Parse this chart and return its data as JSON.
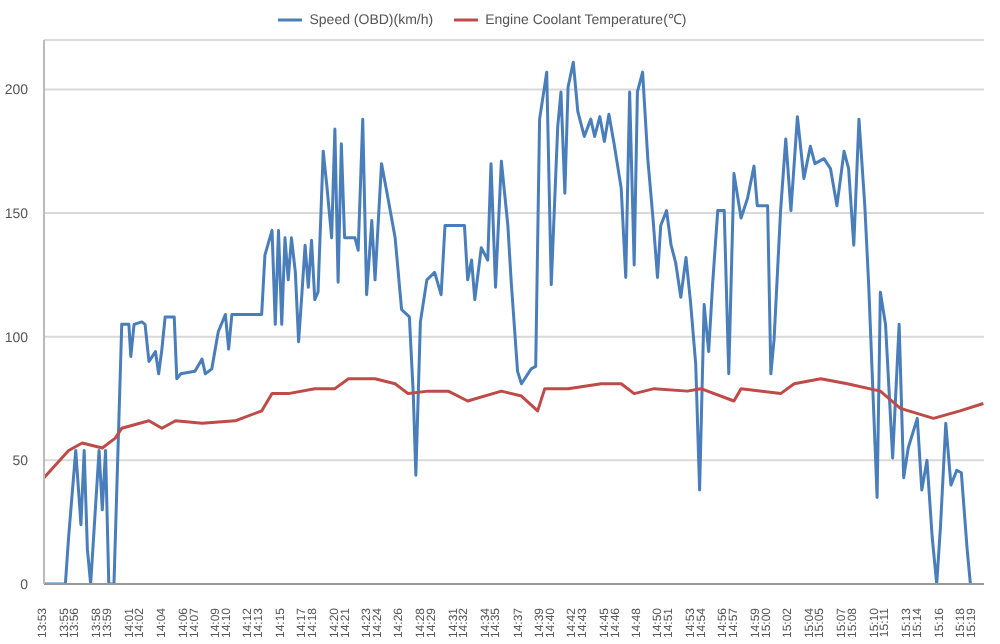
{
  "chart_data": {
    "type": "line",
    "xlim": [
      13.883,
      15.334
    ],
    "ylim": [
      0,
      220
    ],
    "yticks": [
      0,
      50,
      100,
      150,
      200
    ],
    "xticks": [
      {
        "value": 13.883,
        "label": "13:53"
      },
      {
        "value": 13.917,
        "label": "13:55"
      },
      {
        "value": 13.933,
        "label": "13:56"
      },
      {
        "value": 13.967,
        "label": "13:58"
      },
      {
        "value": 13.983,
        "label": "13:59"
      },
      {
        "value": 14.017,
        "label": "14:01"
      },
      {
        "value": 14.033,
        "label": "14:02"
      },
      {
        "value": 14.067,
        "label": "14:04"
      },
      {
        "value": 14.1,
        "label": "14:06"
      },
      {
        "value": 14.117,
        "label": "14:07"
      },
      {
        "value": 14.15,
        "label": "14:09"
      },
      {
        "value": 14.167,
        "label": "14:10"
      },
      {
        "value": 14.2,
        "label": "14:12"
      },
      {
        "value": 14.217,
        "label": "14:13"
      },
      {
        "value": 14.25,
        "label": "14:15"
      },
      {
        "value": 14.283,
        "label": "14:17"
      },
      {
        "value": 14.3,
        "label": "14:18"
      },
      {
        "value": 14.333,
        "label": "14:20"
      },
      {
        "value": 14.35,
        "label": "14:21"
      },
      {
        "value": 14.383,
        "label": "14:23"
      },
      {
        "value": 14.4,
        "label": "14:24"
      },
      {
        "value": 14.433,
        "label": "14:26"
      },
      {
        "value": 14.467,
        "label": "14:28"
      },
      {
        "value": 14.483,
        "label": "14:29"
      },
      {
        "value": 14.517,
        "label": "14:31"
      },
      {
        "value": 14.533,
        "label": "14:32"
      },
      {
        "value": 14.567,
        "label": "14:34"
      },
      {
        "value": 14.583,
        "label": "14:35"
      },
      {
        "value": 14.617,
        "label": "14:37"
      },
      {
        "value": 14.65,
        "label": "14:39"
      },
      {
        "value": 14.667,
        "label": "14:40"
      },
      {
        "value": 14.7,
        "label": "14:42"
      },
      {
        "value": 14.717,
        "label": "14:43"
      },
      {
        "value": 14.75,
        "label": "14:45"
      },
      {
        "value": 14.767,
        "label": "14:46"
      },
      {
        "value": 14.8,
        "label": "14:48"
      },
      {
        "value": 14.833,
        "label": "14:50"
      },
      {
        "value": 14.85,
        "label": "14:51"
      },
      {
        "value": 14.883,
        "label": "14:53"
      },
      {
        "value": 14.9,
        "label": "14:54"
      },
      {
        "value": 14.933,
        "label": "14:56"
      },
      {
        "value": 14.95,
        "label": "14:57"
      },
      {
        "value": 14.983,
        "label": "14:59"
      },
      {
        "value": 15.0,
        "label": "15:00"
      },
      {
        "value": 15.033,
        "label": "15:02"
      },
      {
        "value": 15.067,
        "label": "15:04"
      },
      {
        "value": 15.083,
        "label": "15:05"
      },
      {
        "value": 15.117,
        "label": "15:07"
      },
      {
        "value": 15.133,
        "label": "15:08"
      },
      {
        "value": 15.167,
        "label": "15:10"
      },
      {
        "value": 15.183,
        "label": "15:11"
      },
      {
        "value": 15.217,
        "label": "15:13"
      },
      {
        "value": 15.233,
        "label": "15:14"
      },
      {
        "value": 15.267,
        "label": "15:16"
      },
      {
        "value": 15.3,
        "label": "15:18"
      },
      {
        "value": 15.317,
        "label": "15:19"
      }
    ],
    "grid": "y",
    "legend": "top",
    "marker": "none",
    "line_style": "solid",
    "series": [
      {
        "name": "Speed (OBD)(km/h)",
        "color": "#4a7ebb",
        "x": [
          13.883,
          13.916,
          13.921,
          13.932,
          13.94,
          13.945,
          13.95,
          13.955,
          13.968,
          13.973,
          13.978,
          13.983,
          13.991,
          14.003,
          14.014,
          14.017,
          14.022,
          14.034,
          14.039,
          14.045,
          14.055,
          14.06,
          14.065,
          14.07,
          14.084,
          14.088,
          14.094,
          14.116,
          14.127,
          14.132,
          14.142,
          14.152,
          14.163,
          14.168,
          14.173,
          14.219,
          14.224,
          14.235,
          14.24,
          14.245,
          14.25,
          14.255,
          14.26,
          14.265,
          14.271,
          14.276,
          14.281,
          14.286,
          14.291,
          14.296,
          14.301,
          14.306,
          14.314,
          14.32,
          14.327,
          14.332,
          14.337,
          14.342,
          14.347,
          14.363,
          14.368,
          14.375,
          14.381,
          14.389,
          14.394,
          14.404,
          14.414,
          14.425,
          14.435,
          14.447,
          14.453,
          14.457,
          14.464,
          14.474,
          14.486,
          14.496,
          14.502,
          14.532,
          14.537,
          14.543,
          14.548,
          14.558,
          14.568,
          14.573,
          14.58,
          14.589,
          14.599,
          14.604,
          14.614,
          14.62,
          14.635,
          14.642,
          14.648,
          14.659,
          14.666,
          14.676,
          14.681,
          14.687,
          14.692,
          14.7,
          14.707,
          14.717,
          14.727,
          14.733,
          14.741,
          14.748,
          14.755,
          14.763,
          14.774,
          14.781,
          14.787,
          14.794,
          14.799,
          14.807,
          14.815,
          14.823,
          14.83,
          14.835,
          14.844,
          14.851,
          14.858,
          14.866,
          14.874,
          14.881,
          14.889,
          14.895,
          14.902,
          14.909,
          14.915,
          14.923,
          14.933,
          14.94,
          14.948,
          14.959,
          14.969,
          14.979,
          14.984,
          15.0,
          15.005,
          15.01,
          15.02,
          15.028,
          15.036,
          15.046,
          15.056,
          15.066,
          15.073,
          15.087,
          15.097,
          15.107,
          15.118,
          15.125,
          15.133,
          15.141,
          15.15,
          15.156,
          15.169,
          15.174,
          15.182,
          15.193,
          15.203,
          15.21,
          15.217,
          15.231,
          15.238,
          15.246,
          15.254,
          15.261,
          15.267,
          15.275,
          15.283,
          15.292,
          15.299,
          15.308,
          15.313
        ],
        "values": [
          0,
          0,
          19,
          54,
          24,
          54,
          14,
          0,
          54,
          30,
          54,
          0,
          0,
          105,
          105,
          92,
          105,
          106,
          105,
          90,
          94,
          85,
          95,
          108,
          108,
          83,
          85,
          86,
          91,
          85,
          87,
          102,
          109,
          95,
          109,
          109,
          133,
          143,
          105,
          143,
          105,
          140,
          123,
          140,
          126,
          98,
          117,
          137,
          120,
          139,
          115,
          118,
          175,
          160,
          140,
          184,
          122,
          178,
          140,
          140,
          135,
          188,
          117,
          147,
          123,
          170,
          156,
          140,
          111,
          108,
          77,
          44,
          106,
          123,
          126,
          117,
          145,
          145,
          123,
          131,
          115,
          136,
          131,
          170,
          120,
          171,
          145,
          123,
          86,
          81,
          87,
          88,
          188,
          207,
          121,
          185,
          199,
          158,
          201,
          211,
          191,
          181,
          188,
          181,
          189,
          179,
          190,
          178,
          160,
          124,
          199,
          129,
          199,
          207,
          172,
          148,
          124,
          145,
          151,
          137,
          130,
          116,
          132,
          114,
          89,
          38,
          113,
          94,
          121,
          151,
          151,
          85,
          166,
          148,
          156,
          169,
          153,
          153,
          85,
          99,
          151,
          180,
          151,
          189,
          164,
          177,
          170,
          172,
          168,
          153,
          175,
          168,
          137,
          188,
          153,
          121,
          35,
          118,
          105,
          51,
          105,
          43,
          55,
          67,
          38,
          50,
          19,
          0,
          24,
          65,
          40,
          46,
          45,
          14,
          0
        ]
      },
      {
        "name": "Engine Coolant Temperature(℃)",
        "color": "#be4b48",
        "x": [
          13.883,
          13.921,
          13.942,
          13.973,
          13.993,
          14.003,
          14.045,
          14.065,
          14.086,
          14.127,
          14.178,
          14.219,
          14.235,
          14.26,
          14.301,
          14.332,
          14.353,
          14.394,
          14.425,
          14.445,
          14.476,
          14.507,
          14.537,
          14.589,
          14.62,
          14.645,
          14.656,
          14.692,
          14.743,
          14.774,
          14.794,
          14.825,
          14.876,
          14.897,
          14.948,
          14.959,
          15.02,
          15.041,
          15.082,
          15.123,
          15.174,
          15.205,
          15.256,
          15.297,
          15.333
        ],
        "values": [
          43,
          54,
          57,
          55,
          59,
          63,
          66,
          63,
          66,
          65,
          66,
          70,
          77,
          77,
          79,
          79,
          83,
          83,
          81,
          77,
          78,
          78,
          74,
          78,
          76,
          70,
          79,
          79,
          81,
          81,
          77,
          79,
          78,
          79,
          74,
          79,
          77,
          81,
          83,
          81,
          78,
          71,
          67,
          70,
          73
        ]
      }
    ]
  }
}
